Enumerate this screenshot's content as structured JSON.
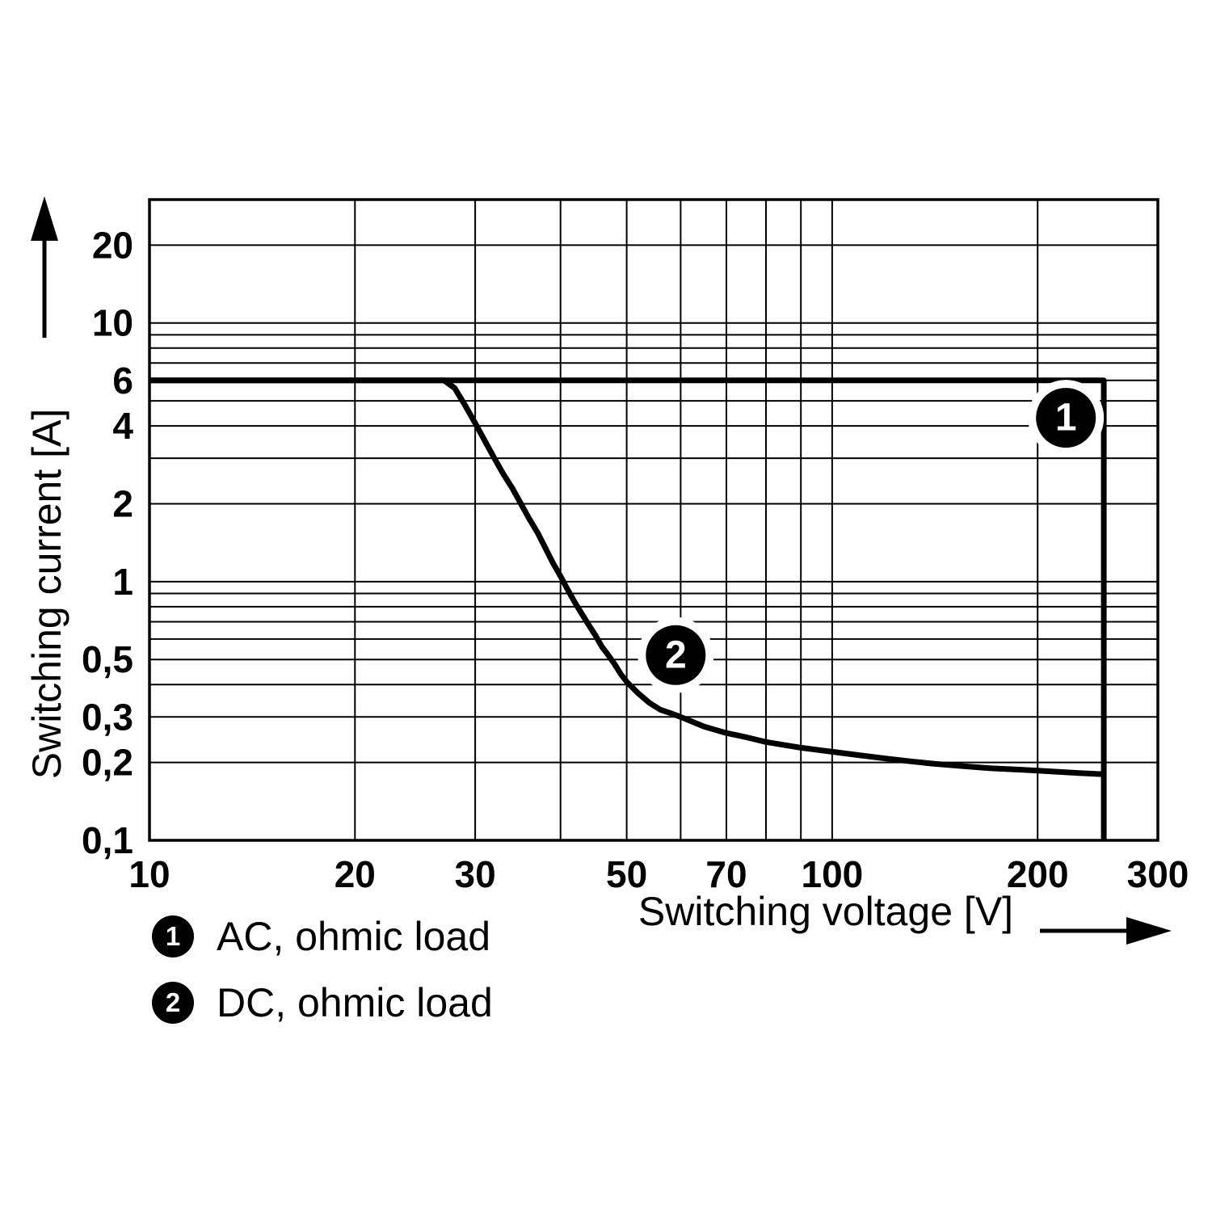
{
  "page": {
    "background": "#ffffff",
    "ink": "#000000"
  },
  "chart_data": {
    "type": "line",
    "title": "",
    "xlabel": "Switching voltage [V]",
    "ylabel": "Switching current [A]",
    "x_scale": "log",
    "y_scale": "log",
    "xlim": [
      10,
      300
    ],
    "ylim": [
      0.1,
      30
    ],
    "grid": "on",
    "x_ticks": [
      {
        "value": 10,
        "label": "10"
      },
      {
        "value": 20,
        "label": "20"
      },
      {
        "value": 30,
        "label": "30"
      },
      {
        "value": 50,
        "label": "50"
      },
      {
        "value": 70,
        "label": "70"
      },
      {
        "value": 100,
        "label": "100"
      },
      {
        "value": 200,
        "label": "200"
      },
      {
        "value": 300,
        "label": "300"
      }
    ],
    "y_ticks": [
      {
        "value": 20,
        "label": "20"
      },
      {
        "value": 10,
        "label": "10"
      },
      {
        "value": 6,
        "label": "6"
      },
      {
        "value": 4,
        "label": "4"
      },
      {
        "value": 2,
        "label": "2"
      },
      {
        "value": 1,
        "label": "1"
      },
      {
        "value": 0.5,
        "label": "0,5"
      },
      {
        "value": 0.3,
        "label": "0,3"
      },
      {
        "value": 0.2,
        "label": "0,2"
      },
      {
        "value": 0.1,
        "label": "0,1"
      }
    ],
    "x_gridlines": [
      10,
      20,
      30,
      40,
      50,
      60,
      70,
      80,
      90,
      100,
      200,
      300
    ],
    "y_gridlines": [
      0.1,
      0.2,
      0.3,
      0.4,
      0.5,
      0.6,
      0.7,
      0.8,
      0.9,
      1,
      2,
      3,
      4,
      5,
      6,
      7,
      8,
      9,
      10,
      20,
      30
    ],
    "series": [
      {
        "id": 1,
        "name": "AC, ohmic load",
        "points": [
          [
            10,
            6
          ],
          [
            250,
            6
          ],
          [
            250,
            0.1
          ]
        ]
      },
      {
        "id": 2,
        "name": "DC, ohmic load",
        "points": [
          [
            10,
            6
          ],
          [
            27,
            6
          ],
          [
            28,
            5.6
          ],
          [
            29,
            4.8
          ],
          [
            30,
            4.1
          ],
          [
            31,
            3.5
          ],
          [
            32,
            3.0
          ],
          [
            33,
            2.6
          ],
          [
            34,
            2.3
          ],
          [
            35,
            2.0
          ],
          [
            36,
            1.75
          ],
          [
            37,
            1.55
          ],
          [
            38,
            1.35
          ],
          [
            39,
            1.18
          ],
          [
            40,
            1.05
          ],
          [
            41,
            0.93
          ],
          [
            42,
            0.83
          ],
          [
            43,
            0.75
          ],
          [
            44,
            0.68
          ],
          [
            45,
            0.62
          ],
          [
            46,
            0.56
          ],
          [
            47,
            0.52
          ],
          [
            48,
            0.48
          ],
          [
            49,
            0.44
          ],
          [
            50,
            0.41
          ],
          [
            52,
            0.37
          ],
          [
            54,
            0.34
          ],
          [
            56,
            0.32
          ],
          [
            58,
            0.31
          ],
          [
            60,
            0.3
          ],
          [
            65,
            0.275
          ],
          [
            70,
            0.26
          ],
          [
            75,
            0.25
          ],
          [
            80,
            0.24
          ],
          [
            90,
            0.228
          ],
          [
            100,
            0.22
          ],
          [
            110,
            0.213
          ],
          [
            120,
            0.207
          ],
          [
            130,
            0.202
          ],
          [
            140,
            0.198
          ],
          [
            150,
            0.195
          ],
          [
            170,
            0.19
          ],
          [
            200,
            0.186
          ],
          [
            230,
            0.182
          ],
          [
            250,
            0.18
          ]
        ]
      }
    ],
    "curve_markers": [
      {
        "label": "1",
        "x": 220,
        "y": 4.3
      },
      {
        "label": "2",
        "x": 59,
        "y": 0.52
      }
    ],
    "legend": [
      {
        "symbol": "1",
        "label": "AC, ohmic load"
      },
      {
        "symbol": "2",
        "label": "DC, ohmic load"
      }
    ]
  }
}
